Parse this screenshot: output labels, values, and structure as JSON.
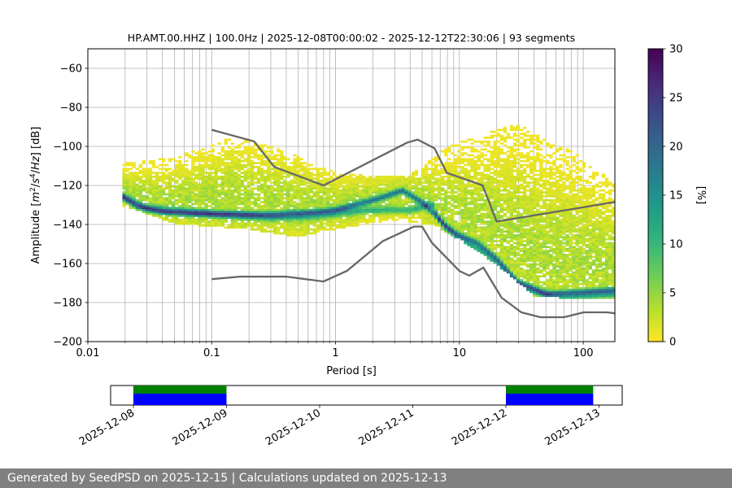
{
  "chart_data": [
    {
      "type": "heatmap",
      "title": "HP.AMT.00.HHZ | 100.0Hz | 2025-12-08T00:00:02 - 2025-12-12T22:30:06 | 93 segments",
      "xlabel": "Period [s]",
      "ylabel_parts": [
        "Amplitude [",
        "m",
        "2",
        "/",
        "s",
        "4",
        "/",
        "Hz",
        "] [dB]"
      ],
      "xscale": "log",
      "xlim": [
        0.01,
        180
      ],
      "ylim": [
        -200,
        -50
      ],
      "x_ticks": [
        0.01,
        0.1,
        1,
        10,
        100
      ],
      "x_tick_labels": [
        "0.01",
        "0.1",
        "1",
        "10",
        "100"
      ],
      "y_ticks": [
        -200,
        -180,
        -160,
        -140,
        -120,
        -100,
        -80,
        -60
      ],
      "y_tick_labels": [
        "−200",
        "−180",
        "−160",
        "−140",
        "−120",
        "−100",
        "−80",
        "−60"
      ],
      "grid": true,
      "colorbar": {
        "label": "[%]",
        "range": [
          0,
          30
        ],
        "ticks": [
          0,
          5,
          10,
          15,
          20,
          25,
          30
        ],
        "tick_labels": [
          "0",
          "5",
          "10",
          "15",
          "20",
          "25",
          "30"
        ],
        "colormap": [
          "#fde725",
          "#b5de2b",
          "#6ece58",
          "#35b779",
          "#1f9e89",
          "#26828e",
          "#31688e",
          "#3e4989",
          "#482878",
          "#440154"
        ]
      },
      "noise_models": {
        "color": "#666666",
        "high_model": {
          "periods": [
            0.1,
            0.22,
            0.32,
            0.8,
            3.8,
            4.6,
            6.3,
            7.9,
            15.4,
            20,
            180
          ],
          "db": [
            -91.5,
            -97.4,
            -110.5,
            -120,
            -98,
            -96.5,
            -101,
            -113.5,
            -120,
            -138.5,
            -128.5
          ]
        },
        "low_model": {
          "periods": [
            0.1,
            0.17,
            0.4,
            0.8,
            1.24,
            2.4,
            4.3,
            5,
            6,
            10,
            12,
            15.6,
            21.9,
            31.6,
            45,
            70,
            101,
            154,
            180
          ],
          "db": [
            -168,
            -166.7,
            -166.7,
            -169.2,
            -163.7,
            -148.6,
            -141.1,
            -141.1,
            -149.4,
            -163.8,
            -166.2,
            -162.1,
            -177.5,
            -185,
            -187.5,
            -187.5,
            -185,
            -185,
            -185.5
          ]
        }
      },
      "psd_distribution": {
        "period_range": [
          0.019,
          180
        ],
        "dominant_mode": {
          "periods": [
            0.019,
            0.025,
            0.04,
            0.1,
            0.3,
            0.7,
            1,
            2,
            3.5,
            5,
            6.5,
            8,
            10,
            14,
            20,
            30,
            50,
            100,
            180
          ],
          "db": [
            -126,
            -131,
            -134,
            -135,
            -135.5,
            -134,
            -133,
            -128,
            -123,
            -129,
            -136,
            -142,
            -146,
            -150,
            -158,
            -170,
            -176,
            -175,
            -174
          ],
          "percent": 15
        },
        "secondary_mode": {
          "periods": [
            0.019,
            0.03,
            0.1,
            0.3,
            0.7,
            1.2,
            2,
            4,
            6,
            7,
            10,
            14,
            20,
            30,
            60,
            180
          ],
          "db": [
            -126,
            -132,
            -135,
            -137,
            -136,
            -134,
            -133,
            -133,
            -130,
            -139,
            -148,
            -153,
            -160,
            -172,
            -178,
            -176
          ],
          "percent": 12
        },
        "upper_band": {
          "periods": [
            0.019,
            0.05,
            0.15,
            0.4,
            1,
            2,
            4,
            8,
            15,
            30,
            80,
            180
          ],
          "db": [
            -110,
            -107,
            -96,
            -104,
            -115,
            -116,
            -116,
            -102,
            -95,
            -90,
            -103,
            -120
          ]
        },
        "lower_band": {
          "periods": [
            0.019,
            0.05,
            0.2,
            0.5,
            1,
            3,
            6,
            10,
            20,
            40,
            100,
            180
          ],
          "db": [
            -130,
            -139,
            -142,
            -146,
            -142,
            -137,
            -140,
            -147,
            -160,
            -176,
            -178,
            -178
          ]
        }
      }
    },
    {
      "type": "timeline",
      "x_tick_labels": [
        "2025-12-08",
        "2025-12-09",
        "2025-12-10",
        "2025-12-11",
        "2025-12-12",
        "2025-12-13"
      ],
      "segments": [
        {
          "start": "2025-12-08",
          "end": "2025-12-09",
          "bottom_color": "#0000ff",
          "top_color": "#008000"
        },
        {
          "start": "2025-12-12",
          "end": "2025-12-12T22:30:06",
          "bottom_color": "#0000ff",
          "top_color": "#008000"
        }
      ]
    }
  ],
  "footer": {
    "text": "Generated by SeedPSD on 2025-12-15 | Calculations updated on 2025-12-13"
  }
}
